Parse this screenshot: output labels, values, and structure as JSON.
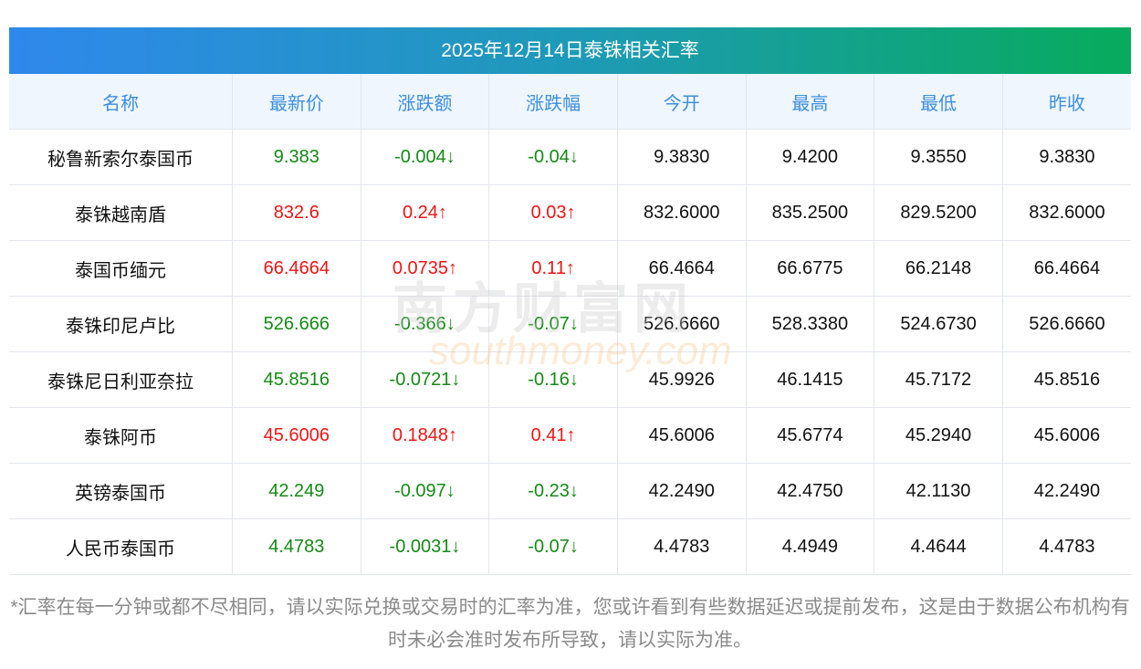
{
  "title": "2025年12月14日泰铢相关汇率",
  "columns": [
    "名称",
    "最新价",
    "涨跌额",
    "涨跌幅",
    "今开",
    "最高",
    "最低",
    "昨收"
  ],
  "rows": [
    {
      "name": "秘鲁新索尔泰国币",
      "latest": "9.383",
      "change": "-0.004↓",
      "pct": "-0.04↓",
      "open": "9.3830",
      "high": "9.4200",
      "low": "9.3550",
      "prev": "9.3830",
      "dir": "down"
    },
    {
      "name": "泰铢越南盾",
      "latest": "832.6",
      "change": "0.24↑",
      "pct": "0.03↑",
      "open": "832.6000",
      "high": "835.2500",
      "low": "829.5200",
      "prev": "832.6000",
      "dir": "up"
    },
    {
      "name": "泰国币缅元",
      "latest": "66.4664",
      "change": "0.0735↑",
      "pct": "0.11↑",
      "open": "66.4664",
      "high": "66.6775",
      "low": "66.2148",
      "prev": "66.4664",
      "dir": "up"
    },
    {
      "name": "泰铢印尼卢比",
      "latest": "526.666",
      "change": "-0.366↓",
      "pct": "-0.07↓",
      "open": "526.6660",
      "high": "528.3380",
      "low": "524.6730",
      "prev": "526.6660",
      "dir": "down"
    },
    {
      "name": "泰铢尼日利亚奈拉",
      "latest": "45.8516",
      "change": "-0.0721↓",
      "pct": "-0.16↓",
      "open": "45.9926",
      "high": "46.1415",
      "low": "45.7172",
      "prev": "45.8516",
      "dir": "down"
    },
    {
      "name": "泰铢阿币",
      "latest": "45.6006",
      "change": "0.1848↑",
      "pct": "0.41↑",
      "open": "45.6006",
      "high": "45.6774",
      "low": "45.2940",
      "prev": "45.6006",
      "dir": "up"
    },
    {
      "name": "英镑泰国币",
      "latest": "42.249",
      "change": "-0.097↓",
      "pct": "-0.23↓",
      "open": "42.2490",
      "high": "42.4750",
      "low": "42.1130",
      "prev": "42.2490",
      "dir": "down"
    },
    {
      "name": "人民币泰国币",
      "latest": "4.4783",
      "change": "-0.0031↓",
      "pct": "-0.07↓",
      "open": "4.4783",
      "high": "4.4949",
      "low": "4.4644",
      "prev": "4.4783",
      "dir": "down"
    }
  ],
  "note": "*汇率在每一分钟或都不尽相同，请以实际兑换或交易时的汇率为准，您或许看到有些数据延迟或提前发布，这是由于数据公布机构有时未必会准时发布所导致，请以实际为准。",
  "watermark": {
    "cn": "南方财富网",
    "en": "southmoney.com"
  },
  "colors": {
    "up": "#f01414",
    "down": "#168a16",
    "header_text": "#3b8fe0"
  }
}
